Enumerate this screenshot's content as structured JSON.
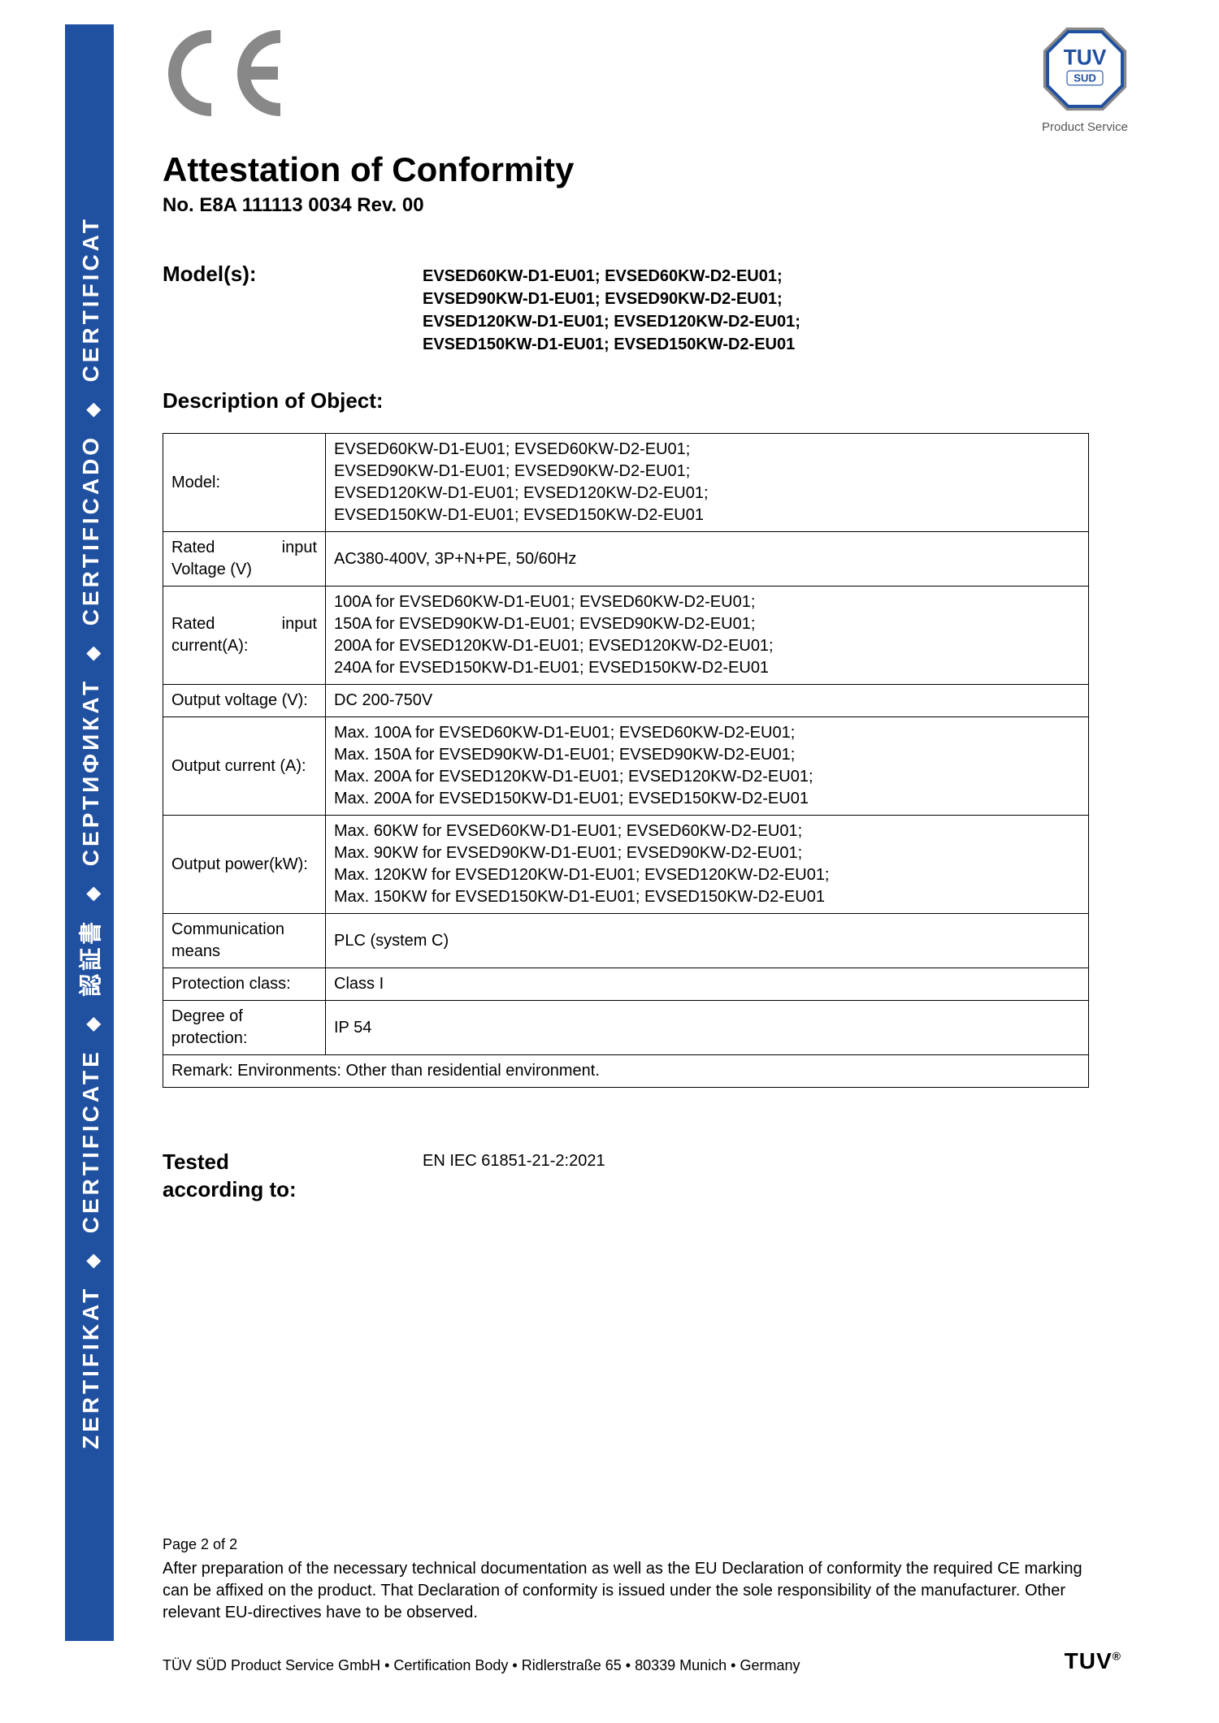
{
  "colors": {
    "sidebar_bg": "#2050a0",
    "sidebar_text": "#ffffff",
    "ce_mark": "#888888",
    "text": "#000000",
    "tuv_blue": "#2050a0",
    "tuv_gray": "#888888"
  },
  "sidebar": {
    "words": [
      "ZERTIFIKAT",
      "CERTIFICATE",
      "認証書",
      "СЕРТИФИКАТ",
      "CERTIFICADO",
      "CERTIFICAT"
    ]
  },
  "header": {
    "ce_text": "CE",
    "tuv_top": "TUV",
    "tuv_sub": "SUD",
    "tuv_label": "Product Service"
  },
  "title": "Attestation of Conformity",
  "cert_no": "No. E8A 111113 0034 Rev. 00",
  "models": {
    "label": "Model(s):",
    "lines": [
      "EVSED60KW-D1-EU01; EVSED60KW-D2-EU01;",
      "EVSED90KW-D1-EU01; EVSED90KW-D2-EU01;",
      "EVSED120KW-D1-EU01; EVSED120KW-D2-EU01;",
      "EVSED150KW-D1-EU01; EVSED150KW-D2-EU01"
    ]
  },
  "description_heading": "Description of Object:",
  "table": {
    "rows": [
      {
        "label": "Model:",
        "value_lines": [
          "EVSED60KW-D1-EU01; EVSED60KW-D2-EU01;",
          "EVSED90KW-D1-EU01; EVSED90KW-D2-EU01;",
          "EVSED120KW-D1-EU01; EVSED120KW-D2-EU01;",
          "EVSED150KW-D1-EU01; EVSED150KW-D2-EU01"
        ]
      },
      {
        "label_parts": [
          "Rated",
          "input"
        ],
        "label_line2": "Voltage (V)",
        "value_lines": [
          "AC380-400V, 3P+N+PE, 50/60Hz"
        ]
      },
      {
        "label_parts": [
          "Rated",
          "input"
        ],
        "label_line2": "current(A):",
        "value_lines": [
          "100A for EVSED60KW-D1-EU01; EVSED60KW-D2-EU01;",
          "150A for EVSED90KW-D1-EU01; EVSED90KW-D2-EU01;",
          "200A for EVSED120KW-D1-EU01; EVSED120KW-D2-EU01;",
          "240A for EVSED150KW-D1-EU01; EVSED150KW-D2-EU01"
        ]
      },
      {
        "label": "Output voltage (V):",
        "value_lines": [
          "DC 200-750V"
        ]
      },
      {
        "label": "Output current (A):",
        "value_lines": [
          "Max. 100A for EVSED60KW-D1-EU01; EVSED60KW-D2-EU01;",
          "Max. 150A for EVSED90KW-D1-EU01; EVSED90KW-D2-EU01;",
          "Max. 200A for EVSED120KW-D1-EU01; EVSED120KW-D2-EU01;",
          "Max. 200A for EVSED150KW-D1-EU01; EVSED150KW-D2-EU01"
        ]
      },
      {
        "label": "Output power(kW):",
        "value_lines": [
          "Max. 60KW for EVSED60KW-D1-EU01; EVSED60KW-D2-EU01;",
          "Max. 90KW for EVSED90KW-D1-EU01; EVSED90KW-D2-EU01;",
          "Max. 120KW for EVSED120KW-D1-EU01; EVSED120KW-D2-EU01;",
          "Max. 150KW for EVSED150KW-D1-EU01; EVSED150KW-D2-EU01"
        ]
      },
      {
        "label": "Communication means",
        "value_lines": [
          "PLC (system C)"
        ]
      },
      {
        "label": "Protection class:",
        "value_lines": [
          "Class I"
        ]
      },
      {
        "label": "Degree of protection:",
        "value_lines": [
          "IP 54"
        ]
      }
    ],
    "remark": "Remark: Environments: Other than residential environment."
  },
  "tested": {
    "label": "Tested according to:",
    "value": "EN IEC 61851-21-2:2021"
  },
  "footer": {
    "page": "Page 2 of 2",
    "disclaimer": "After preparation of the necessary technical documentation as well as the EU Declaration of conformity the required CE marking can be affixed on the product. That Declaration of conformity is issued under the sole responsibility of the manufacturer. Other relevant EU-directives have to be observed.",
    "address": "TÜV SÜD Product Service GmbH • Certification Body • Ridlerstraße 65 • 80339 Munich • Germany",
    "tuv_mark": "TUV"
  }
}
